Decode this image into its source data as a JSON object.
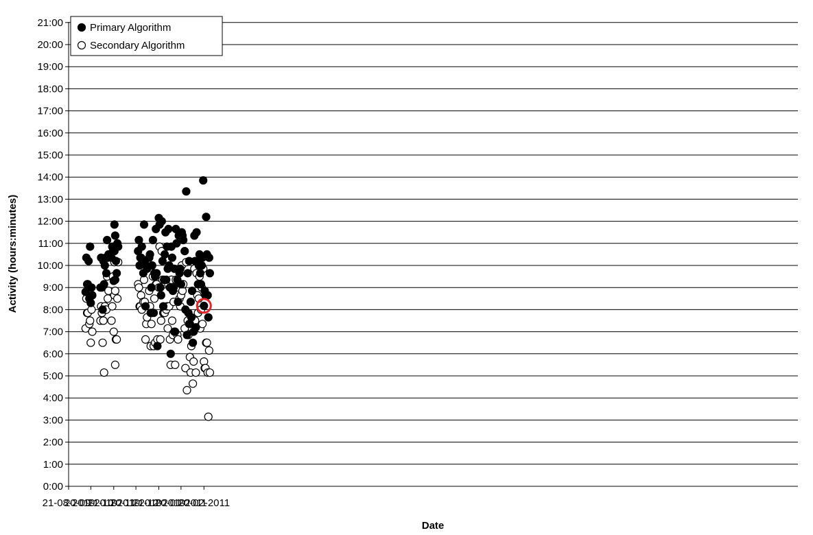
{
  "chart_data": {
    "type": "scatter",
    "xlabel": "Date",
    "ylabel": "Activity (hours:minutes)",
    "x_ticks": [
      "21-08-2010",
      "20-09-2010",
      "21-10-2010",
      "20-11-2010",
      "21-12-2010",
      "20-01-2011",
      "20-02-2011"
    ],
    "y_ticks": [
      "0:00",
      "1:00",
      "2:00",
      "3:00",
      "4:00",
      "5:00",
      "6:00",
      "7:00",
      "8:00",
      "9:00",
      "10:00",
      "11:00",
      "12:00",
      "13:00",
      "14:00",
      "15:00",
      "16:00",
      "17:00",
      "18:00",
      "19:00",
      "20:00",
      "21:00"
    ],
    "xlim": [
      "2010-08-21",
      "2011-03-11"
    ],
    "ylim_hours": [
      0,
      21.5
    ],
    "grid": true,
    "legend_position": "top-left",
    "highlight": {
      "series": "Primary Algorithm",
      "date": "2011-02-20",
      "y": 8.17,
      "color": "#e8242b"
    },
    "series": [
      {
        "name": "Primary Algorithm",
        "marker": "filled-circle",
        "color": "#000000",
        "points": [
          [
            "2010-09-13",
            8.8
          ],
          [
            "2010-09-14",
            10.35
          ],
          [
            "2010-09-15",
            9.15
          ],
          [
            "2010-09-16",
            9.15
          ],
          [
            "2010-09-17",
            10.2
          ],
          [
            "2010-09-18",
            8.5
          ],
          [
            "2010-09-19",
            10.85
          ],
          [
            "2010-09-20",
            8.3
          ],
          [
            "2010-09-21",
            9.0
          ],
          [
            "2010-09-22",
            8.65
          ],
          [
            "2010-10-03",
            9.0
          ],
          [
            "2010-10-04",
            10.35
          ],
          [
            "2010-10-05",
            9.0
          ],
          [
            "2010-10-06",
            8.0
          ],
          [
            "2010-10-07",
            10.2
          ],
          [
            "2010-10-08",
            9.15
          ],
          [
            "2010-10-09",
            10.0
          ],
          [
            "2010-10-10",
            10.35
          ],
          [
            "2010-10-11",
            9.65
          ],
          [
            "2010-10-12",
            11.15
          ],
          [
            "2010-10-13",
            10.35
          ],
          [
            "2010-10-14",
            10.5
          ],
          [
            "2010-10-18",
            10.35
          ],
          [
            "2010-10-19",
            10.85
          ],
          [
            "2010-10-20",
            10.65
          ],
          [
            "2010-10-21",
            9.3
          ],
          [
            "2010-10-22",
            11.85
          ],
          [
            "2010-10-22",
            10.65
          ],
          [
            "2010-10-23",
            11.35
          ],
          [
            "2010-10-23",
            9.35
          ],
          [
            "2010-10-24",
            10.2
          ],
          [
            "2010-10-25",
            9.65
          ],
          [
            "2010-10-26",
            11.0
          ],
          [
            "2010-10-27",
            10.85
          ],
          [
            "2010-11-23",
            10.65
          ],
          [
            "2010-11-24",
            11.15
          ],
          [
            "2010-11-25",
            10.0
          ],
          [
            "2010-11-26",
            10.35
          ],
          [
            "2010-11-27",
            10.35
          ],
          [
            "2010-11-28",
            10.85
          ],
          [
            "2010-11-30",
            9.65
          ],
          [
            "2010-12-01",
            11.85
          ],
          [
            "2010-12-02",
            10.2
          ],
          [
            "2010-12-03",
            8.15
          ],
          [
            "2010-12-04",
            10.0
          ],
          [
            "2010-12-05",
            9.85
          ],
          [
            "2010-12-08",
            10.35
          ],
          [
            "2010-12-09",
            10.5
          ],
          [
            "2010-12-10",
            7.85
          ],
          [
            "2010-12-11",
            9.0
          ],
          [
            "2010-12-12",
            10.0
          ],
          [
            "2010-12-13",
            11.15
          ],
          [
            "2010-12-14",
            7.85
          ],
          [
            "2010-12-15",
            9.65
          ],
          [
            "2010-12-16",
            9.5
          ],
          [
            "2010-12-17",
            11.65
          ],
          [
            "2010-12-18",
            9.65
          ],
          [
            "2010-12-19",
            6.35
          ],
          [
            "2010-12-21",
            12.15
          ],
          [
            "2010-12-22",
            11.85
          ],
          [
            "2010-12-23",
            9.0
          ],
          [
            "2010-12-24",
            8.65
          ],
          [
            "2010-12-25",
            12.0
          ],
          [
            "2010-12-26",
            10.2
          ],
          [
            "2010-12-27",
            8.15
          ],
          [
            "2010-12-28",
            9.35
          ],
          [
            "2010-12-29",
            10.5
          ],
          [
            "2010-12-30",
            11.5
          ],
          [
            "2010-12-31",
            9.35
          ],
          [
            "2011-01-01",
            10.85
          ],
          [
            "2011-01-02",
            9.85
          ],
          [
            "2011-01-03",
            11.65
          ],
          [
            "2011-01-04",
            10.0
          ],
          [
            "2011-01-05",
            9.0
          ],
          [
            "2011-01-06",
            6.0
          ],
          [
            "2011-01-07",
            10.85
          ],
          [
            "2011-01-08",
            10.35
          ],
          [
            "2011-01-09",
            8.85
          ],
          [
            "2011-01-10",
            9.0
          ],
          [
            "2011-01-11",
            9.85
          ],
          [
            "2011-01-12",
            7.0
          ],
          [
            "2011-01-13",
            11.65
          ],
          [
            "2011-01-14",
            11.0
          ],
          [
            "2011-01-15",
            9.35
          ],
          [
            "2011-01-16",
            8.35
          ],
          [
            "2011-01-17",
            11.35
          ],
          [
            "2011-01-18",
            9.65
          ],
          [
            "2011-01-19",
            9.85
          ],
          [
            "2011-01-20",
            9.15
          ],
          [
            "2011-01-21",
            11.5
          ],
          [
            "2011-01-22",
            11.35
          ],
          [
            "2011-01-23",
            11.15
          ],
          [
            "2011-01-25",
            10.65
          ],
          [
            "2011-01-26",
            8.0
          ],
          [
            "2011-01-27",
            13.35
          ],
          [
            "2011-01-28",
            6.85
          ],
          [
            "2011-01-29",
            9.65
          ],
          [
            "2011-01-30",
            7.85
          ],
          [
            "2011-01-31",
            10.2
          ],
          [
            "2011-02-01",
            7.35
          ],
          [
            "2011-02-02",
            8.35
          ],
          [
            "2011-02-03",
            7.65
          ],
          [
            "2011-02-04",
            8.85
          ],
          [
            "2011-02-05",
            6.5
          ],
          [
            "2011-02-06",
            7.0
          ],
          [
            "2011-02-07",
            11.35
          ],
          [
            "2011-02-08",
            10.2
          ],
          [
            "2011-02-09",
            7.2
          ],
          [
            "2011-02-10",
            11.5
          ],
          [
            "2011-02-11",
            10.2
          ],
          [
            "2011-02-12",
            9.15
          ],
          [
            "2011-02-13",
            10.0
          ],
          [
            "2011-02-14",
            10.5
          ],
          [
            "2011-02-15",
            9.65
          ],
          [
            "2011-02-16",
            9.15
          ],
          [
            "2011-02-17",
            10.0
          ],
          [
            "2011-02-18",
            10.35
          ],
          [
            "2011-02-19",
            13.85
          ],
          [
            "2011-02-20",
            8.17
          ],
          [
            "2011-02-21",
            8.85
          ],
          [
            "2011-02-22",
            8.65
          ],
          [
            "2011-02-23",
            12.2
          ],
          [
            "2011-02-24",
            10.5
          ],
          [
            "2011-02-25",
            8.65
          ],
          [
            "2011-02-26",
            7.65
          ],
          [
            "2011-02-27",
            10.35
          ],
          [
            "2011-02-28",
            9.65
          ]
        ]
      },
      {
        "name": "Secondary Algorithm",
        "marker": "open-circle",
        "color": "#000000",
        "points": [
          [
            "2010-09-13",
            7.15
          ],
          [
            "2010-09-14",
            8.5
          ],
          [
            "2010-09-15",
            7.85
          ],
          [
            "2010-09-16",
            7.85
          ],
          [
            "2010-09-17",
            8.85
          ],
          [
            "2010-09-18",
            7.35
          ],
          [
            "2010-09-19",
            7.5
          ],
          [
            "2010-09-20",
            6.5
          ],
          [
            "2010-09-21",
            8.0
          ],
          [
            "2010-09-22",
            7.0
          ],
          [
            "2010-10-03",
            7.5
          ],
          [
            "2010-10-04",
            8.15
          ],
          [
            "2010-10-05",
            7.85
          ],
          [
            "2010-10-06",
            6.5
          ],
          [
            "2010-10-07",
            7.5
          ],
          [
            "2010-10-08",
            5.15
          ],
          [
            "2010-10-09",
            8.15
          ],
          [
            "2010-10-10",
            8.0
          ],
          [
            "2010-10-11",
            8.0
          ],
          [
            "2010-10-12",
            9.5
          ],
          [
            "2010-10-13",
            8.5
          ],
          [
            "2010-10-14",
            8.85
          ],
          [
            "2010-10-18",
            7.5
          ],
          [
            "2010-10-19",
            8.15
          ],
          [
            "2010-10-20",
            9.5
          ],
          [
            "2010-10-21",
            7.0
          ],
          [
            "2010-10-22",
            10.15
          ],
          [
            "2010-10-22",
            8.65
          ],
          [
            "2010-10-23",
            5.5
          ],
          [
            "2010-10-23",
            8.85
          ],
          [
            "2010-10-24",
            6.65
          ],
          [
            "2010-10-25",
            6.65
          ],
          [
            "2010-10-26",
            8.5
          ],
          [
            "2010-10-27",
            10.15
          ],
          [
            "2010-11-23",
            9.15
          ],
          [
            "2010-11-24",
            9.0
          ],
          [
            "2010-11-25",
            8.15
          ],
          [
            "2010-11-26",
            8.15
          ],
          [
            "2010-11-27",
            8.65
          ],
          [
            "2010-11-28",
            8.0
          ],
          [
            "2010-11-30",
            8.35
          ],
          [
            "2010-12-01",
            9.35
          ],
          [
            "2010-12-02",
            8.35
          ],
          [
            "2010-12-03",
            6.65
          ],
          [
            "2010-12-04",
            7.35
          ],
          [
            "2010-12-05",
            7.65
          ],
          [
            "2010-12-08",
            8.85
          ],
          [
            "2010-12-09",
            8.15
          ],
          [
            "2010-12-10",
            6.35
          ],
          [
            "2010-12-11",
            7.35
          ],
          [
            "2010-12-12",
            7.85
          ],
          [
            "2010-12-13",
            9.5
          ],
          [
            "2010-12-14",
            6.35
          ],
          [
            "2010-12-15",
            8.5
          ],
          [
            "2010-12-16",
            6.5
          ],
          [
            "2010-12-17",
            9.15
          ],
          [
            "2010-12-18",
            9.15
          ],
          [
            "2010-12-19",
            6.65
          ],
          [
            "2010-12-21",
            9.0
          ],
          [
            "2010-12-22",
            10.85
          ],
          [
            "2010-12-23",
            6.65
          ],
          [
            "2010-12-24",
            7.5
          ],
          [
            "2010-12-25",
            10.65
          ],
          [
            "2010-12-26",
            9.35
          ],
          [
            "2010-12-27",
            7.85
          ],
          [
            "2010-12-28",
            7.85
          ],
          [
            "2010-12-29",
            7.85
          ],
          [
            "2010-12-30",
            9.15
          ],
          [
            "2010-12-31",
            8.0
          ],
          [
            "2011-01-01",
            8.15
          ],
          [
            "2011-01-02",
            7.15
          ],
          [
            "2011-01-03",
            9.15
          ],
          [
            "2011-01-04",
            8.15
          ],
          [
            "2011-01-05",
            6.65
          ],
          [
            "2011-01-06",
            5.5
          ],
          [
            "2011-01-07",
            9.35
          ],
          [
            "2011-01-08",
            7.5
          ],
          [
            "2011-01-09",
            6.85
          ],
          [
            "2011-01-10",
            8.35
          ],
          [
            "2011-01-11",
            7.0
          ],
          [
            "2011-01-12",
            5.5
          ],
          [
            "2011-01-13",
            9.35
          ],
          [
            "2011-01-14",
            9.0
          ],
          [
            "2011-01-15",
            6.85
          ],
          [
            "2011-01-16",
            6.65
          ],
          [
            "2011-01-17",
            9.0
          ],
          [
            "2011-01-18",
            8.5
          ],
          [
            "2011-01-19",
            8.15
          ],
          [
            "2011-01-20",
            8.65
          ],
          [
            "2011-01-21",
            10.0
          ],
          [
            "2011-01-22",
            8.85
          ],
          [
            "2011-01-23",
            9.15
          ],
          [
            "2011-01-25",
            7.15
          ],
          [
            "2011-01-26",
            5.35
          ],
          [
            "2011-01-27",
            10.15
          ],
          [
            "2011-01-28",
            4.35
          ],
          [
            "2011-01-29",
            7.5
          ],
          [
            "2011-01-30",
            6.85
          ],
          [
            "2011-01-31",
            7.35
          ],
          [
            "2011-02-01",
            5.85
          ],
          [
            "2011-02-02",
            5.15
          ],
          [
            "2011-02-03",
            6.35
          ],
          [
            "2011-02-04",
            7.15
          ],
          [
            "2011-02-05",
            4.65
          ],
          [
            "2011-02-06",
            5.65
          ],
          [
            "2011-02-07",
            9.85
          ],
          [
            "2011-02-08",
            7.5
          ],
          [
            "2011-02-09",
            5.15
          ],
          [
            "2011-02-10",
            9.65
          ],
          [
            "2011-02-11",
            8.65
          ],
          [
            "2011-02-12",
            7.85
          ],
          [
            "2011-02-13",
            8.5
          ],
          [
            "2011-02-14",
            9.5
          ],
          [
            "2011-02-15",
            7.15
          ],
          [
            "2011-02-16",
            8.0
          ],
          [
            "2011-02-17",
            9.0
          ],
          [
            "2011-02-18",
            7.35
          ],
          [
            "2011-02-19",
            9.85
          ],
          [
            "2011-02-20",
            5.65
          ],
          [
            "2011-02-21",
            5.35
          ],
          [
            "2011-02-22",
            5.35
          ],
          [
            "2011-02-23",
            6.5
          ],
          [
            "2011-02-24",
            6.5
          ],
          [
            "2011-02-25",
            5.15
          ],
          [
            "2011-02-26",
            3.15
          ],
          [
            "2011-02-27",
            6.15
          ],
          [
            "2011-02-28",
            5.15
          ]
        ]
      }
    ]
  }
}
